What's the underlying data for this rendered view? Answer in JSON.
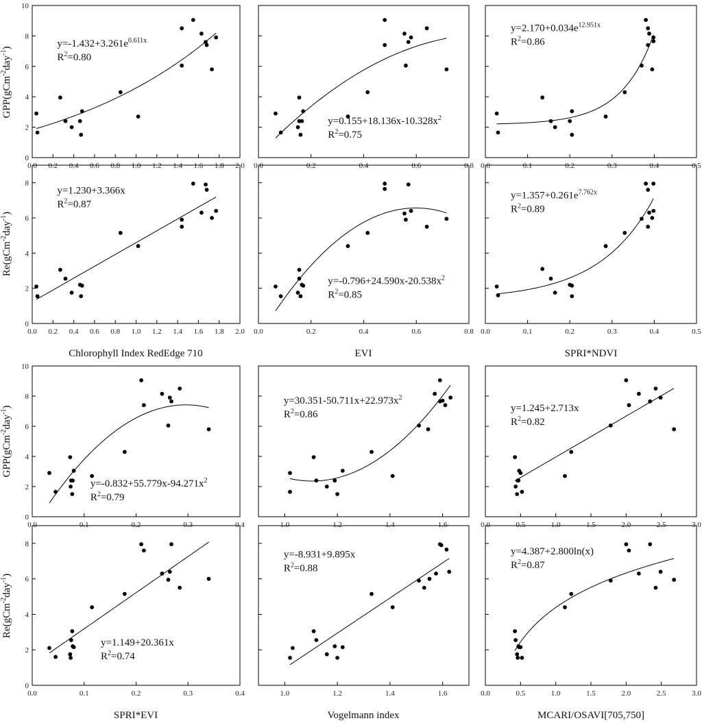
{
  "figure": {
    "axes_shared": "GPP and Re rows share axis titles"
  },
  "y_axis_titles": {
    "gpp": "GPP(gCm",
    "gpp_sup1": "-2",
    "gpp_mid": "day",
    "gpp_sup2": "-1",
    "re": "Re(gCm",
    "re_sup1": "-2",
    "re_mid": "day",
    "re_sup2": "-1"
  },
  "x_axis_titles": [
    "Chlorophyll Index RedEdge 710",
    "EVI",
    "SPRI*NDVI",
    "SPRI*EVI",
    "Vogelmann index",
    "MCARI/OSAVI[705,750]"
  ],
  "chart_data": [
    {
      "id": "ci-gpp",
      "type": "scatter",
      "xlabel": "Chlorophyll Index RedEdge 710",
      "ylabel": "GPP(gCm-2day-1)",
      "xlim": [
        0,
        2.0
      ],
      "ylim": [
        0,
        10
      ],
      "xticks": [
        "0.0",
        "0.2",
        "0.4",
        "0.6",
        "0.8",
        "1.0",
        "1.2",
        "1.4",
        "1.6",
        "1.8",
        "2.0"
      ],
      "yticks": [
        "0",
        "2",
        "4",
        "6",
        "8",
        "10"
      ],
      "x": [
        0.04,
        0.05,
        0.27,
        0.32,
        0.38,
        0.46,
        0.47,
        0.48,
        0.85,
        1.02,
        1.44,
        1.44,
        1.55,
        1.63,
        1.67,
        1.68,
        1.73,
        1.77
      ],
      "y": [
        2.9,
        1.65,
        3.95,
        2.4,
        2.0,
        2.4,
        1.5,
        3.05,
        4.3,
        2.7,
        6.05,
        8.5,
        9.05,
        8.15,
        7.6,
        7.4,
        5.8,
        7.9
      ],
      "fit": {
        "model": "exp",
        "a": -1.432,
        "b": 3.261,
        "c": 0.611,
        "x_range": [
          0.04,
          1.77
        ]
      },
      "equation": {
        "line1_main": "y=-1.432+3.261e",
        "line1_sup": "0.611x",
        "r2_label": "R",
        "r2_sup": "2",
        "r2_value": "=0.80"
      }
    },
    {
      "id": "evi-gpp",
      "type": "scatter",
      "xlabel": "EVI",
      "ylabel": "GPP(gCm-2day-1)",
      "xlim": [
        0,
        0.8
      ],
      "ylim": [
        0,
        10
      ],
      "xticks": [
        "0.0",
        "0.2",
        "0.4",
        "0.6",
        "0.8"
      ],
      "yticks": [
        "0",
        "2",
        "4",
        "6",
        "8",
        "10"
      ],
      "x": [
        0.065,
        0.085,
        0.15,
        0.155,
        0.155,
        0.16,
        0.165,
        0.17,
        0.34,
        0.415,
        0.48,
        0.48,
        0.555,
        0.56,
        0.57,
        0.58,
        0.64,
        0.715
      ],
      "y": [
        2.9,
        1.65,
        2.0,
        3.95,
        2.4,
        1.5,
        2.4,
        3.05,
        2.7,
        4.3,
        7.4,
        9.05,
        8.15,
        6.05,
        7.6,
        7.9,
        8.5,
        5.8
      ],
      "fit": {
        "model": "quad",
        "a": 0.155,
        "b": 18.136,
        "c": -10.328,
        "x_range": [
          0.065,
          0.715
        ]
      },
      "equation": {
        "line1_main": "y=0.155+18.136x-10.328x",
        "line1_sup": "2",
        "r2_label": "R",
        "r2_sup": "2",
        "r2_value": "=0.75"
      }
    },
    {
      "id": "spri-ndvi-gpp",
      "type": "scatter",
      "xlabel": "SPRI*NDVI",
      "ylabel": "GPP(gCm-2day-1)",
      "xlim": [
        0,
        0.5
      ],
      "ylim": [
        0,
        10
      ],
      "xticks": [
        "0.0",
        "0.1",
        "0.2",
        "0.3",
        "0.4",
        "0.5"
      ],
      "yticks": [
        "0",
        "2",
        "4",
        "6",
        "8",
        "10"
      ],
      "x": [
        0.027,
        0.03,
        0.135,
        0.155,
        0.165,
        0.2,
        0.205,
        0.205,
        0.285,
        0.33,
        0.37,
        0.38,
        0.385,
        0.388,
        0.385,
        0.398,
        0.395,
        0.398
      ],
      "y": [
        2.9,
        1.65,
        3.95,
        2.4,
        2.0,
        2.4,
        3.05,
        1.5,
        2.7,
        4.3,
        6.05,
        9.05,
        8.5,
        8.15,
        7.4,
        7.9,
        5.8,
        7.65
      ],
      "fit": {
        "model": "exp",
        "a": 2.17,
        "b": 0.034,
        "c": 12.951,
        "x_range": [
          0.027,
          0.398
        ]
      },
      "equation": {
        "line1_main": "y=2.170+0.034e",
        "line1_sup": "12.951x",
        "r2_label": "R",
        "r2_sup": "2",
        "r2_value": "=0.86"
      }
    },
    {
      "id": "ci-re",
      "type": "scatter",
      "xlabel": "Chlorophyll Index RedEdge 710",
      "ylabel": "Re(gCm-2day-1)",
      "xlim": [
        0,
        2.0
      ],
      "ylim": [
        0,
        9
      ],
      "xticks": [
        "0.0",
        "0.2",
        "0.4",
        "0.6",
        "0.8",
        "1.0",
        "1.2",
        "1.4",
        "1.6",
        "1.8",
        "2.0"
      ],
      "yticks": [
        "0",
        "2",
        "4",
        "6",
        "8"
      ],
      "x": [
        0.04,
        0.05,
        0.27,
        0.32,
        0.38,
        0.46,
        0.47,
        0.48,
        0.85,
        1.02,
        1.44,
        1.44,
        1.55,
        1.63,
        1.67,
        1.68,
        1.73,
        1.77
      ],
      "y": [
        2.1,
        1.55,
        3.05,
        2.55,
        1.75,
        2.2,
        1.55,
        2.15,
        5.15,
        4.4,
        5.9,
        5.5,
        7.95,
        6.3,
        7.9,
        7.6,
        6.0,
        6.4
      ],
      "fit": {
        "model": "linear",
        "a": 1.23,
        "b": 3.366,
        "x_range": [
          0.04,
          1.77
        ]
      },
      "equation": {
        "line1_main": "y=1.230+3.366x",
        "line1_sup": "",
        "r2_label": "R",
        "r2_sup": "2",
        "r2_value": "=0.87"
      }
    },
    {
      "id": "evi-re",
      "type": "scatter",
      "xlabel": "EVI",
      "ylabel": "Re(gCm-2day-1)",
      "xlim": [
        0,
        0.8
      ],
      "ylim": [
        0,
        9
      ],
      "xticks": [
        "0.0",
        "0.2",
        "0.4",
        "0.6",
        "0.8"
      ],
      "yticks": [
        "0",
        "2",
        "4",
        "6",
        "8"
      ],
      "x": [
        0.065,
        0.085,
        0.15,
        0.155,
        0.155,
        0.16,
        0.165,
        0.17,
        0.34,
        0.415,
        0.48,
        0.48,
        0.555,
        0.56,
        0.57,
        0.58,
        0.64,
        0.715
      ],
      "y": [
        2.1,
        1.55,
        1.75,
        2.55,
        3.05,
        1.55,
        2.2,
        2.15,
        4.4,
        5.15,
        7.65,
        7.95,
        6.25,
        5.9,
        7.9,
        6.4,
        5.5,
        5.95
      ],
      "fit": {
        "model": "quad",
        "a": -0.796,
        "b": 24.59,
        "c": -20.538,
        "x_range": [
          0.065,
          0.715
        ]
      },
      "equation": {
        "line1_main": "y=-0.796+24.590x-20.538x",
        "line1_sup": "2",
        "r2_label": "R",
        "r2_sup": "2",
        "r2_value": "=0.85"
      }
    },
    {
      "id": "spri-ndvi-re",
      "type": "scatter",
      "xlabel": "SPRI*NDVI",
      "ylabel": "Re(gCm-2day-1)",
      "xlim": [
        0,
        0.5
      ],
      "ylim": [
        0,
        9
      ],
      "xticks": [
        "0.0",
        "0.1",
        "0.2",
        "0.3",
        "0.4",
        "0.5"
      ],
      "yticks": [
        "0",
        "2",
        "4",
        "6",
        "8"
      ],
      "x": [
        0.027,
        0.03,
        0.135,
        0.155,
        0.165,
        0.2,
        0.205,
        0.205,
        0.285,
        0.33,
        0.37,
        0.38,
        0.385,
        0.388,
        0.385,
        0.398,
        0.395,
        0.398
      ],
      "y": [
        2.1,
        1.6,
        3.1,
        2.55,
        1.75,
        2.2,
        1.55,
        2.15,
        4.4,
        5.15,
        5.95,
        7.95,
        5.5,
        6.3,
        7.6,
        7.95,
        6.0,
        6.4
      ],
      "fit": {
        "model": "exp",
        "a": 1.357,
        "b": 0.261,
        "c": 7.762,
        "x_range": [
          0.027,
          0.398
        ]
      },
      "equation": {
        "line1_main": "y=1.357+0.261e",
        "line1_sup": "7.762x",
        "r2_label": "R",
        "r2_sup": "2",
        "r2_value": "=0.89"
      }
    },
    {
      "id": "spri-evi-gpp",
      "type": "scatter",
      "xlabel": "SPRI*EVI",
      "ylabel": "GPP(gCm-2day-1)",
      "xlim": [
        0,
        0.4
      ],
      "ylim": [
        0,
        10
      ],
      "xticks": [
        "0.0",
        "0.1",
        "0.2",
        "0.3",
        "0.4"
      ],
      "yticks": [
        "0",
        "2",
        "4",
        "6",
        "8",
        "10"
      ],
      "x": [
        0.033,
        0.045,
        0.073,
        0.074,
        0.075,
        0.077,
        0.078,
        0.08,
        0.115,
        0.178,
        0.21,
        0.215,
        0.25,
        0.262,
        0.265,
        0.268,
        0.284,
        0.34
      ],
      "y": [
        2.9,
        1.65,
        3.95,
        2.0,
        2.4,
        1.5,
        2.4,
        3.05,
        2.7,
        4.3,
        9.05,
        7.4,
        8.15,
        6.05,
        7.9,
        7.65,
        8.5,
        5.8
      ],
      "fit": {
        "model": "quad",
        "a": -0.832,
        "b": 55.779,
        "c": -94.271,
        "x_range": [
          0.033,
          0.34
        ]
      },
      "equation": {
        "line1_main": "y=-0.832+55.779x-94.271x",
        "line1_sup": "2",
        "r2_label": "R",
        "r2_sup": "2",
        "r2_value": "=0.79"
      }
    },
    {
      "id": "vog-gpp",
      "type": "scatter",
      "xlabel": "Vogelmann index",
      "ylabel": "GPP(gCm-2day-1)",
      "xlim": [
        0.9,
        1.7
      ],
      "ylim": [
        0,
        10
      ],
      "xticks": [
        "1.0",
        "1.2",
        "1.4",
        "1.6"
      ],
      "xtick_values": [
        1.0,
        1.2,
        1.4,
        1.6
      ],
      "yticks": [
        "0",
        "2",
        "4",
        "6",
        "8",
        "10"
      ],
      "x": [
        1.02,
        1.02,
        1.11,
        1.12,
        1.16,
        1.19,
        1.2,
        1.22,
        1.33,
        1.41,
        1.51,
        1.545,
        1.57,
        1.59,
        1.59,
        1.6,
        1.61,
        1.63
      ],
      "y": [
        2.9,
        1.65,
        3.95,
        2.4,
        2.0,
        2.4,
        1.5,
        3.05,
        4.3,
        2.7,
        6.05,
        5.8,
        8.15,
        7.65,
        9.05,
        7.7,
        7.4,
        7.9
      ],
      "fit": {
        "model": "quad",
        "a": 30.351,
        "b": -50.711,
        "c": 22.973,
        "x_range": [
          1.02,
          1.63
        ]
      },
      "equation": {
        "line1_main": "y=30.351-50.711x+22.973x",
        "line1_sup": "2",
        "r2_label": "R",
        "r2_sup": "2",
        "r2_value": "=0.86"
      }
    },
    {
      "id": "mcari-gpp",
      "type": "scatter",
      "xlabel": "MCARI/OSAVI[705,750]",
      "ylabel": "GPP(gCm-2day-1)",
      "xlim": [
        0,
        3.0
      ],
      "ylim": [
        0,
        10
      ],
      "xticks": [
        "0.0",
        "0.5",
        "1.0",
        "1.5",
        "2.0",
        "2.5",
        "3.0"
      ],
      "yticks": [
        "0",
        "2",
        "4",
        "6",
        "8",
        "10"
      ],
      "x": [
        0.42,
        0.43,
        0.45,
        0.46,
        0.47,
        0.48,
        0.5,
        0.52,
        1.13,
        1.22,
        1.78,
        2.0,
        2.04,
        2.18,
        2.34,
        2.42,
        2.49,
        2.68
      ],
      "y": [
        3.95,
        2.0,
        1.5,
        2.4,
        2.4,
        3.05,
        2.9,
        1.65,
        2.7,
        4.3,
        6.05,
        9.05,
        7.4,
        8.15,
        7.65,
        8.5,
        7.9,
        5.8
      ],
      "fit": {
        "model": "linear",
        "a": 1.245,
        "b": 2.713,
        "x_range": [
          0.42,
          2.68
        ]
      },
      "equation": {
        "line1_main": "y=1.245+2.713x",
        "line1_sup": "",
        "r2_label": "R",
        "r2_sup": "2",
        "r2_value": "=0.82"
      }
    },
    {
      "id": "spri-evi-re",
      "type": "scatter",
      "xlabel": "SPRI*EVI",
      "ylabel": "Re(gCm-2day-1)",
      "xlim": [
        0,
        0.4
      ],
      "ylim": [
        0,
        9
      ],
      "xticks": [
        "0.0",
        "0.1",
        "0.2",
        "0.3",
        "0.4"
      ],
      "yticks": [
        "0",
        "2",
        "4",
        "6",
        "8"
      ],
      "x": [
        0.033,
        0.045,
        0.073,
        0.074,
        0.075,
        0.077,
        0.078,
        0.08,
        0.115,
        0.178,
        0.21,
        0.215,
        0.25,
        0.262,
        0.265,
        0.268,
        0.284,
        0.34
      ],
      "y": [
        2.1,
        1.6,
        1.75,
        1.55,
        2.55,
        3.05,
        2.2,
        2.15,
        4.4,
        5.15,
        7.95,
        7.6,
        6.3,
        5.95,
        6.4,
        7.95,
        5.5,
        6.0
      ],
      "fit": {
        "model": "linear",
        "a": 1.149,
        "b": 20.361,
        "x_range": [
          0.033,
          0.34
        ]
      },
      "equation": {
        "line1_main": "y=1.149+20.361x",
        "line1_sup": "",
        "r2_label": "R",
        "r2_sup": "2",
        "r2_value": "=0.74"
      }
    },
    {
      "id": "vog-re",
      "type": "scatter",
      "xlabel": "Vogelmann index",
      "ylabel": "Re(gCm-2day-1)",
      "xlim": [
        0.9,
        1.7
      ],
      "ylim": [
        0,
        9
      ],
      "xticks": [
        "1.0",
        "1.2",
        "1.4",
        "1.6"
      ],
      "xtick_values": [
        1.0,
        1.2,
        1.4,
        1.6
      ],
      "yticks": [
        "0",
        "2",
        "4",
        "6",
        "8"
      ],
      "x": [
        1.02,
        1.03,
        1.11,
        1.12,
        1.16,
        1.19,
        1.2,
        1.22,
        1.33,
        1.41,
        1.51,
        1.53,
        1.55,
        1.575,
        1.59,
        1.595,
        1.615,
        1.625
      ],
      "y": [
        1.55,
        2.1,
        3.05,
        2.55,
        1.75,
        2.2,
        1.55,
        2.15,
        5.15,
        4.4,
        5.9,
        5.5,
        6.0,
        6.3,
        7.95,
        7.9,
        7.65,
        6.4
      ],
      "fit": {
        "model": "linear",
        "a": -8.931,
        "b": 9.895,
        "x_range": [
          1.02,
          1.625
        ]
      },
      "equation": {
        "line1_main": "y=-8.931+9.895x",
        "line1_sup": "",
        "r2_label": "R",
        "r2_sup": "2",
        "r2_value": "=0.88"
      }
    },
    {
      "id": "mcari-re",
      "type": "scatter",
      "xlabel": "MCARI/OSAVI[705,750]",
      "ylabel": "Re(gCm-2day-1)",
      "xlim": [
        0,
        3.0
      ],
      "ylim": [
        0,
        9
      ],
      "xticks": [
        "0.0",
        "0.5",
        "1.0",
        "1.5",
        "2.0",
        "2.5",
        "3.0"
      ],
      "yticks": [
        "0",
        "2",
        "4",
        "6",
        "8"
      ],
      "x": [
        0.42,
        0.43,
        0.45,
        0.46,
        0.47,
        0.48,
        0.5,
        0.52,
        1.13,
        1.22,
        1.78,
        2.0,
        2.04,
        2.18,
        2.34,
        2.42,
        2.49,
        2.68
      ],
      "y": [
        3.05,
        2.55,
        1.75,
        1.55,
        2.2,
        2.15,
        2.15,
        1.55,
        4.4,
        5.15,
        5.9,
        7.95,
        7.6,
        6.3,
        7.95,
        5.5,
        6.4,
        5.95
      ],
      "fit": {
        "model": "log",
        "a": 4.387,
        "b": 2.8,
        "x_range": [
          0.42,
          2.68
        ]
      },
      "equation": {
        "line1_main": "y=4.387+2.800ln(x)",
        "line1_sup": "",
        "r2_label": "R",
        "r2_sup": "2",
        "r2_value": "=0.87"
      }
    }
  ]
}
